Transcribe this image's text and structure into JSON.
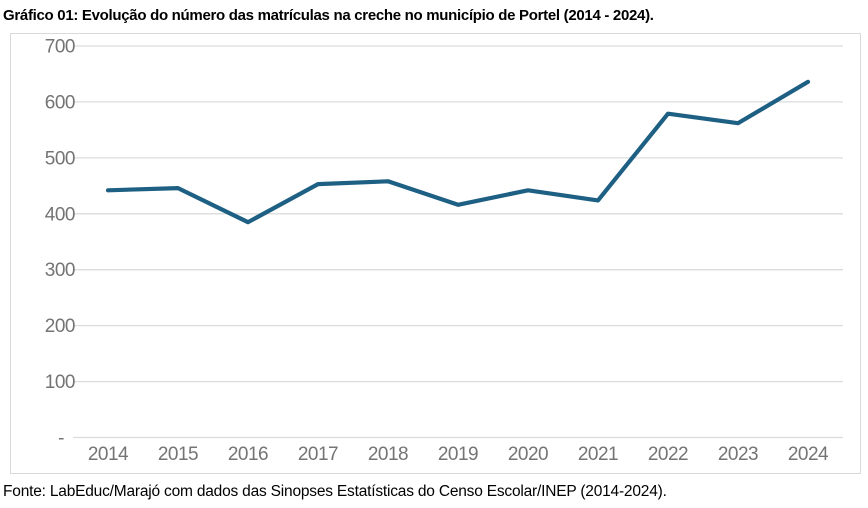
{
  "title": "Gráfico 01: Evolução do número das matrículas na creche no município de Portel (2014 - 2024).",
  "source": "Fonte: LabEduc/Marajó com dados das Sinopses Estatísticas do Censo Escolar/INEP (2014-2024).",
  "colors": {
    "line": "#1e6083",
    "gridline": "#dcdcdc",
    "axis_label": "#747474",
    "chart_border": "#d9d9d9",
    "background": "#ffffff",
    "title_text": "#000000"
  },
  "chart_data": {
    "type": "line",
    "title": "Gráfico 01: Evolução do número das matrículas na creche no município de Portel (2014 - 2024).",
    "categories": [
      "2014",
      "2015",
      "2016",
      "2017",
      "2018",
      "2019",
      "2020",
      "2021",
      "2022",
      "2023",
      "2024"
    ],
    "values": [
      442,
      446,
      385,
      453,
      458,
      416,
      442,
      424,
      579,
      562,
      636
    ],
    "xlabel": "",
    "ylabel": "",
    "ylim": [
      0,
      700
    ],
    "yticks": [
      0,
      100,
      200,
      300,
      400,
      500,
      600,
      700
    ],
    "ytick_labels": [
      "-",
      "100",
      "200",
      "300",
      "400",
      "500",
      "600",
      "700"
    ],
    "grid": "horizontal",
    "legend": "none",
    "markers": "none"
  }
}
